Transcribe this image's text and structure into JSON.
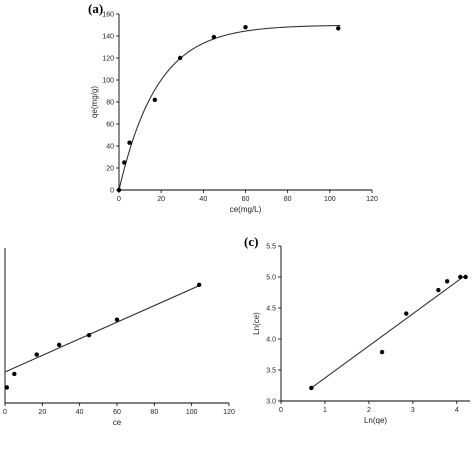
{
  "chart_data": [
    {
      "id": "a",
      "type": "scatter",
      "panel_label": "(a)",
      "xlabel": "ce(mg/L)",
      "ylabel": "qe(mg/g)",
      "xlim": [
        0,
        120
      ],
      "ylim": [
        0,
        160
      ],
      "xticks": [
        0,
        20,
        40,
        60,
        80,
        100,
        120
      ],
      "yticks": [
        0,
        20,
        40,
        60,
        80,
        100,
        120,
        140,
        160
      ],
      "points": [
        {
          "x": 0,
          "y": 0
        },
        {
          "x": 2.5,
          "y": 25
        },
        {
          "x": 5,
          "y": 43
        },
        {
          "x": 17,
          "y": 82
        },
        {
          "x": 29,
          "y": 120
        },
        {
          "x": 45,
          "y": 139
        },
        {
          "x": 60,
          "y": 148
        },
        {
          "x": 104,
          "y": 147
        }
      ],
      "fit": {
        "kind": "saturation",
        "qmax": 150,
        "k": 0.055
      }
    },
    {
      "id": "b",
      "type": "scatter",
      "panel_label": "",
      "xlabel": "ce",
      "ylabel": "",
      "xlim": [
        0,
        120
      ],
      "ylim": [
        0,
        0.8
      ],
      "xticks": [
        0,
        20,
        40,
        60,
        80,
        100,
        120
      ],
      "yticks": [],
      "points": [
        {
          "x": 1,
          "y": 0.08
        },
        {
          "x": 5,
          "y": 0.15
        },
        {
          "x": 17,
          "y": 0.25
        },
        {
          "x": 29,
          "y": 0.3
        },
        {
          "x": 45,
          "y": 0.35
        },
        {
          "x": 60,
          "y": 0.43
        },
        {
          "x": 104,
          "y": 0.61
        }
      ],
      "fit": {
        "kind": "linear",
        "x0": 0,
        "y0": 0.16,
        "x1": 105,
        "y1": 0.61
      }
    },
    {
      "id": "c",
      "type": "scatter",
      "panel_label": "(c)",
      "xlabel": "Ln(qe)",
      "ylabel": "Ln(ce)",
      "xlim": [
        0,
        4.3
      ],
      "ylim": [
        3.0,
        5.5
      ],
      "xticks": [
        0,
        1,
        2,
        3,
        4
      ],
      "yticks": [
        3.0,
        3.5,
        4.0,
        4.5,
        5.0,
        5.5
      ],
      "yticks_fmt": [
        "3.0",
        "3.5",
        "4.0",
        "4.5",
        "5.0",
        "5.5"
      ],
      "points": [
        {
          "x": 0.69,
          "y": 3.21
        },
        {
          "x": 2.3,
          "y": 3.79
        },
        {
          "x": 2.85,
          "y": 4.41
        },
        {
          "x": 3.58,
          "y": 4.79
        },
        {
          "x": 3.78,
          "y": 4.93
        },
        {
          "x": 4.08,
          "y": 5.0
        },
        {
          "x": 4.2,
          "y": 5.0
        }
      ],
      "fit": {
        "kind": "linear",
        "x0": 0.69,
        "y0": 3.21,
        "x1": 4.2,
        "y1": 5.03
      }
    }
  ]
}
